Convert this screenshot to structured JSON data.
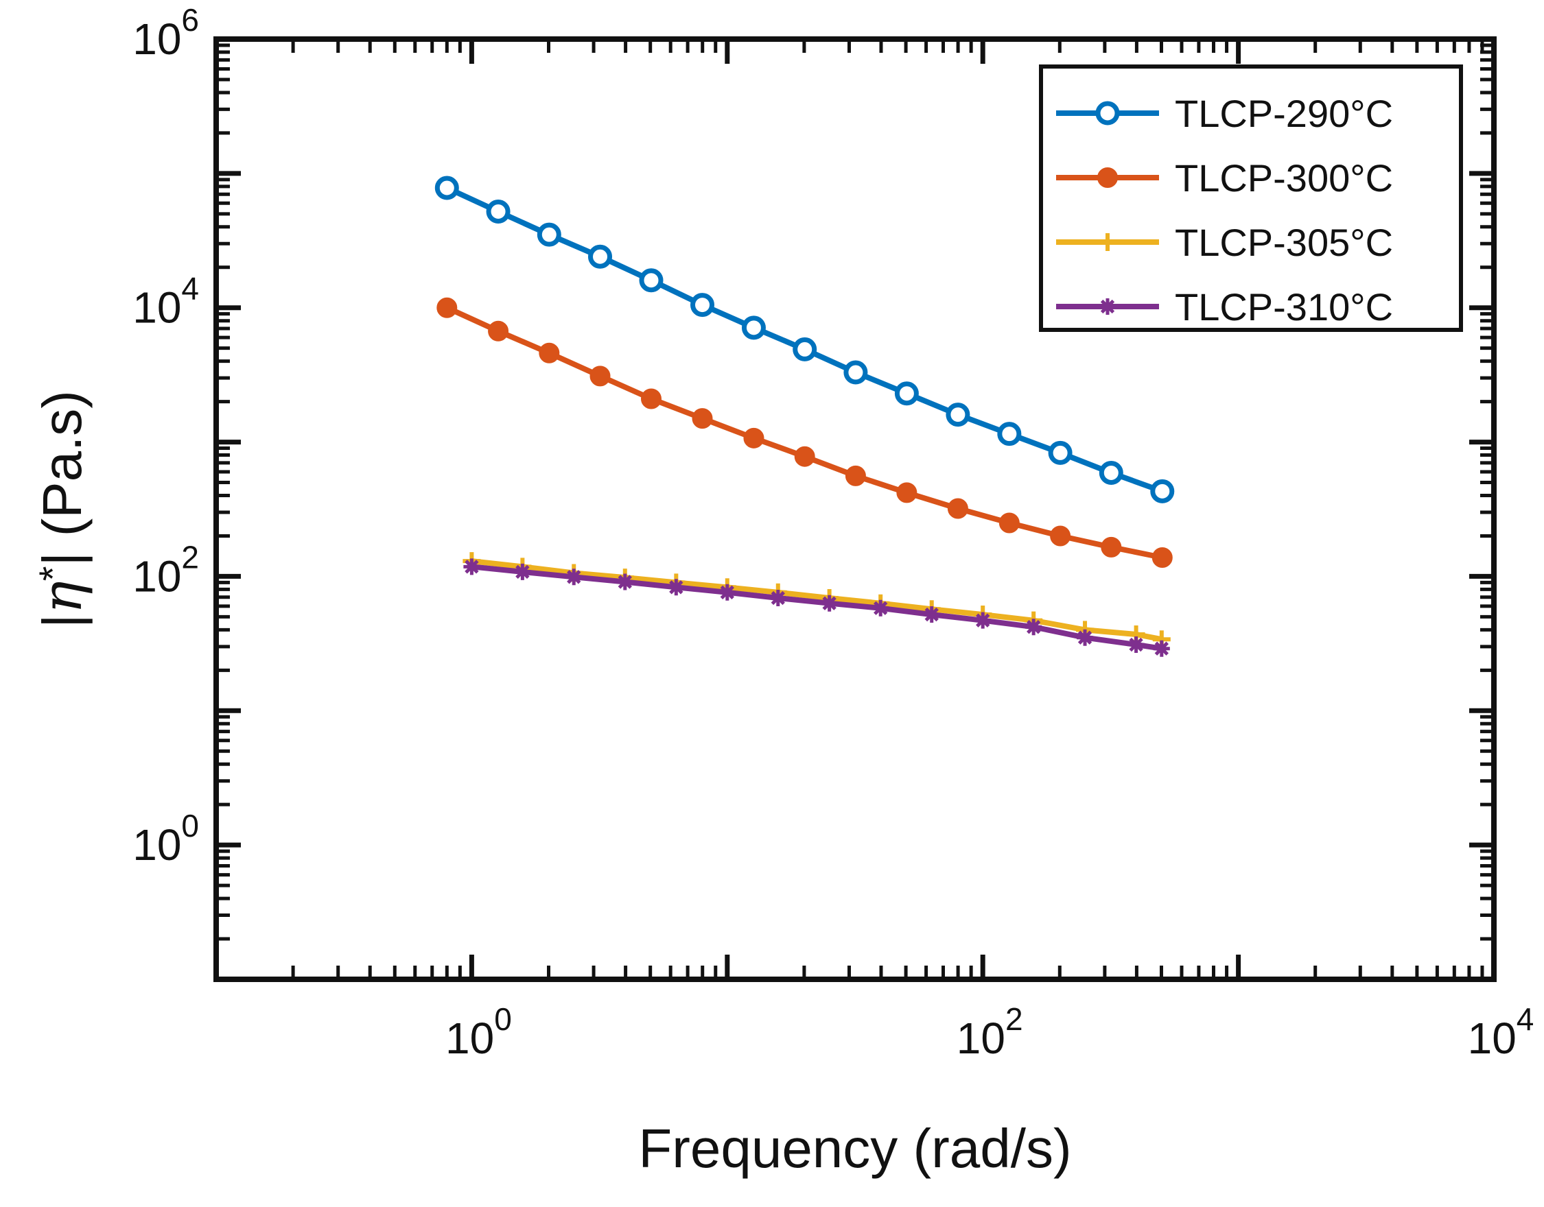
{
  "chart_data": {
    "type": "line",
    "title": "",
    "xlabel": "Frequency (rad/s)",
    "ylabel_parts": {
      "abs_open": "|",
      "symbol": "η",
      "star": "*",
      "abs_close": "|",
      "unit": " (Pa.s)"
    },
    "xscale": "log",
    "yscale": "log",
    "xlim": [
      0.1,
      10000
    ],
    "ylim": [
      0.1,
      1000000
    ],
    "x_ticks": [
      {
        "value": 1,
        "base": "10",
        "exp": "0"
      },
      {
        "value": 100,
        "base": "10",
        "exp": "2"
      },
      {
        "value": 10000,
        "base": "10",
        "exp": "4"
      }
    ],
    "y_ticks": [
      {
        "value": 1,
        "base": "10",
        "exp": "0"
      },
      {
        "value": 100,
        "base": "10",
        "exp": "2"
      },
      {
        "value": 10000,
        "base": "10",
        "exp": "4"
      },
      {
        "value": 1000000,
        "base": "10",
        "exp": "6"
      }
    ],
    "legend_position": "top-right",
    "series": [
      {
        "name": "TLCP-290°C",
        "color": "#0072BD",
        "marker": "open-circle",
        "x": [
          0.8,
          1.27,
          2.01,
          3.18,
          5.04,
          7.99,
          12.7,
          20.1,
          31.8,
          50.4,
          79.9,
          127,
          201,
          318,
          504
        ],
        "y": [
          78000,
          52000,
          35000,
          24000,
          16000,
          10500,
          7100,
          4900,
          3300,
          2300,
          1600,
          1150,
          830,
          590,
          430
        ]
      },
      {
        "name": "TLCP-300°C",
        "color": "#D95319",
        "marker": "filled-circle",
        "x": [
          0.8,
          1.27,
          2.01,
          3.18,
          5.04,
          7.99,
          12.7,
          20.1,
          31.8,
          50.4,
          79.9,
          127,
          201,
          318,
          504
        ],
        "y": [
          10000,
          6700,
          4600,
          3100,
          2100,
          1500,
          1070,
          780,
          560,
          420,
          320,
          250,
          200,
          165,
          138
        ]
      },
      {
        "name": "TLCP-305°C",
        "color": "#EDB120",
        "marker": "plus",
        "x": [
          1,
          1.58,
          2.51,
          3.98,
          6.31,
          10,
          15.8,
          25.1,
          39.8,
          63.1,
          100,
          158,
          251,
          398,
          501
        ],
        "y": [
          130,
          118,
          106,
          98,
          90,
          83,
          76,
          69,
          63,
          57,
          52,
          47,
          40,
          37,
          34
        ]
      },
      {
        "name": "TLCP-310°C",
        "color": "#7E2F8E",
        "marker": "asterisk",
        "x": [
          1,
          1.58,
          2.51,
          3.98,
          6.31,
          10,
          15.8,
          25.1,
          39.8,
          63.1,
          100,
          158,
          251,
          398,
          501
        ],
        "y": [
          118,
          108,
          99,
          91,
          83,
          76,
          69,
          63,
          58,
          52,
          47,
          42,
          35,
          31,
          29
        ]
      }
    ]
  }
}
